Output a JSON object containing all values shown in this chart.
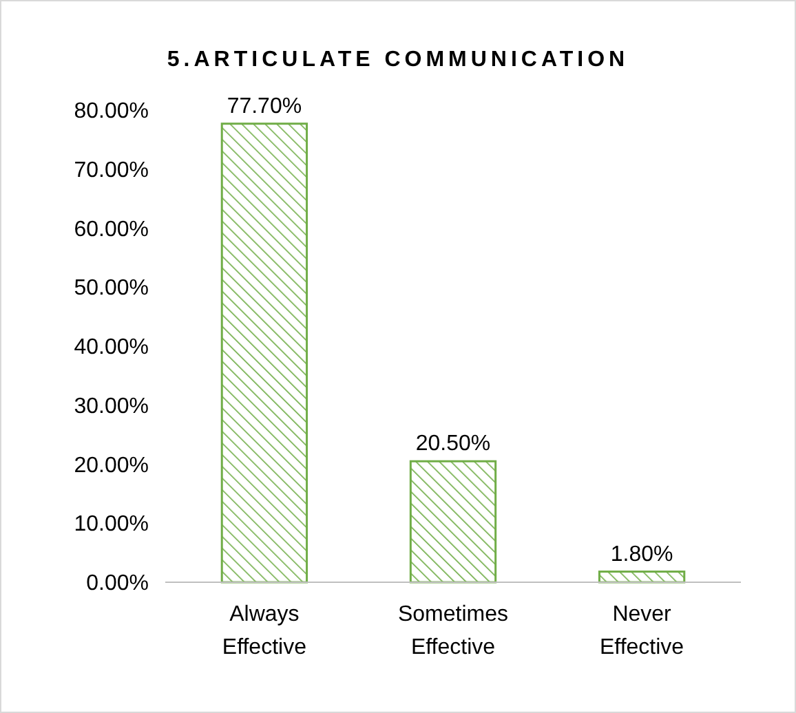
{
  "chart_data": {
    "type": "bar",
    "title": "5.ARTICULATE COMMUNICATION",
    "categories": [
      "Always Effective",
      "Sometimes Effective",
      "Never Effective"
    ],
    "values": [
      77.7,
      20.5,
      1.8
    ],
    "color": "#70ad47",
    "value_labels": [
      "77.70%",
      "20.50%",
      "1.80%"
    ],
    "ylim": [
      0,
      80
    ],
    "yticks": [
      {
        "value": 0,
        "label": "0.00%"
      },
      {
        "value": 10,
        "label": "10.00%"
      },
      {
        "value": 20,
        "label": "20.00%"
      },
      {
        "value": 30,
        "label": "30.00%"
      },
      {
        "value": 40,
        "label": "40.00%"
      },
      {
        "value": 50,
        "label": "50.00%"
      },
      {
        "value": 60,
        "label": "60.00%"
      },
      {
        "value": 70,
        "label": "70.00%"
      },
      {
        "value": 80,
        "label": "80.00%"
      }
    ],
    "grid": false
  }
}
